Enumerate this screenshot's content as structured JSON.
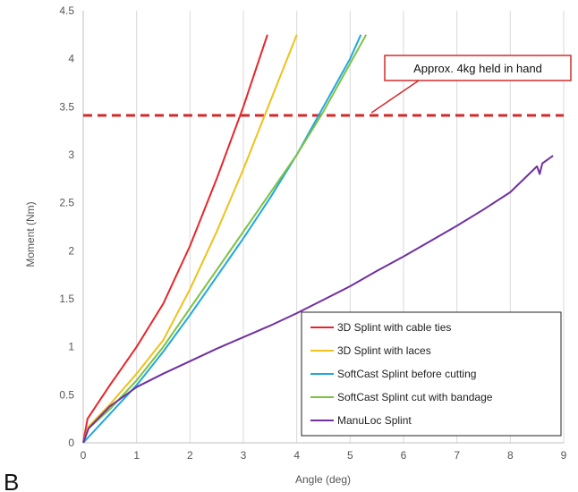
{
  "panel_label": "B",
  "chart_data": {
    "type": "line",
    "title": "",
    "xlabel": "Angle (deg)",
    "ylabel": "Moment (Nm)",
    "xlim": [
      0,
      9
    ],
    "ylim": [
      0,
      4.5
    ],
    "xticks": [
      "0",
      "1",
      "2",
      "3",
      "4",
      "5",
      "6",
      "7",
      "8",
      "9"
    ],
    "yticks": [
      "0",
      "0.5",
      "1",
      "1.5",
      "2",
      "2.5",
      "3",
      "3.5",
      "4",
      "4.5"
    ],
    "grid": "vertical",
    "legend_position": "bottom-right",
    "reference_line": {
      "y": 3.41,
      "color": "#d42a2a",
      "style": "dashed"
    },
    "annotation": {
      "text": "Approx. 4kg held in hand",
      "target_x": 5.4,
      "target_y": 3.41
    },
    "series": [
      {
        "name": "3D Splint with cable ties",
        "color": "#e8262a",
        "x": [
          0,
          0.08,
          0.2,
          0.5,
          1.0,
          1.5,
          2.0,
          2.5,
          3.0,
          3.3,
          3.45
        ],
        "y": [
          0,
          0.25,
          0.35,
          0.6,
          1.0,
          1.45,
          2.05,
          2.75,
          3.5,
          4.0,
          4.25
        ]
      },
      {
        "name": "3D Splint with laces",
        "color": "#f2c01b",
        "x": [
          0,
          0.1,
          0.5,
          1.0,
          1.5,
          2.0,
          2.5,
          3.0,
          3.5,
          4.0
        ],
        "y": [
          0,
          0.17,
          0.4,
          0.72,
          1.07,
          1.6,
          2.2,
          2.85,
          3.55,
          4.25
        ]
      },
      {
        "name": "SoftCast Splint before cutting",
        "color": "#1fa7e0",
        "x": [
          0,
          0.5,
          1.0,
          1.5,
          2.0,
          2.5,
          3.0,
          3.5,
          4.0,
          4.5,
          5.0,
          5.2
        ],
        "y": [
          0,
          0.3,
          0.6,
          0.95,
          1.33,
          1.73,
          2.13,
          2.55,
          3.0,
          3.5,
          4.0,
          4.25
        ]
      },
      {
        "name": "SoftCast Splint cut with bandage",
        "color": "#7cc242",
        "x": [
          0,
          0.1,
          0.5,
          1.0,
          1.5,
          2.0,
          2.5,
          3.0,
          3.5,
          4.0,
          4.5,
          5.0,
          5.3
        ],
        "y": [
          0,
          0.15,
          0.35,
          0.65,
          1.0,
          1.4,
          1.8,
          2.2,
          2.6,
          3.0,
          3.45,
          3.95,
          4.25
        ]
      },
      {
        "name": "ManuLoc Splint",
        "color": "#7030a0",
        "x": [
          0,
          0.1,
          0.5,
          1.0,
          1.5,
          2.0,
          2.5,
          3.0,
          3.5,
          4.0,
          4.5,
          5.0,
          5.5,
          6.0,
          6.5,
          7.0,
          7.5,
          8.0,
          8.5,
          8.55,
          8.6,
          8.8
        ],
        "y": [
          0,
          0.15,
          0.38,
          0.58,
          0.72,
          0.85,
          0.98,
          1.1,
          1.22,
          1.35,
          1.49,
          1.63,
          1.79,
          1.94,
          2.1,
          2.26,
          2.43,
          2.61,
          2.88,
          2.8,
          2.91,
          2.99
        ]
      }
    ]
  }
}
